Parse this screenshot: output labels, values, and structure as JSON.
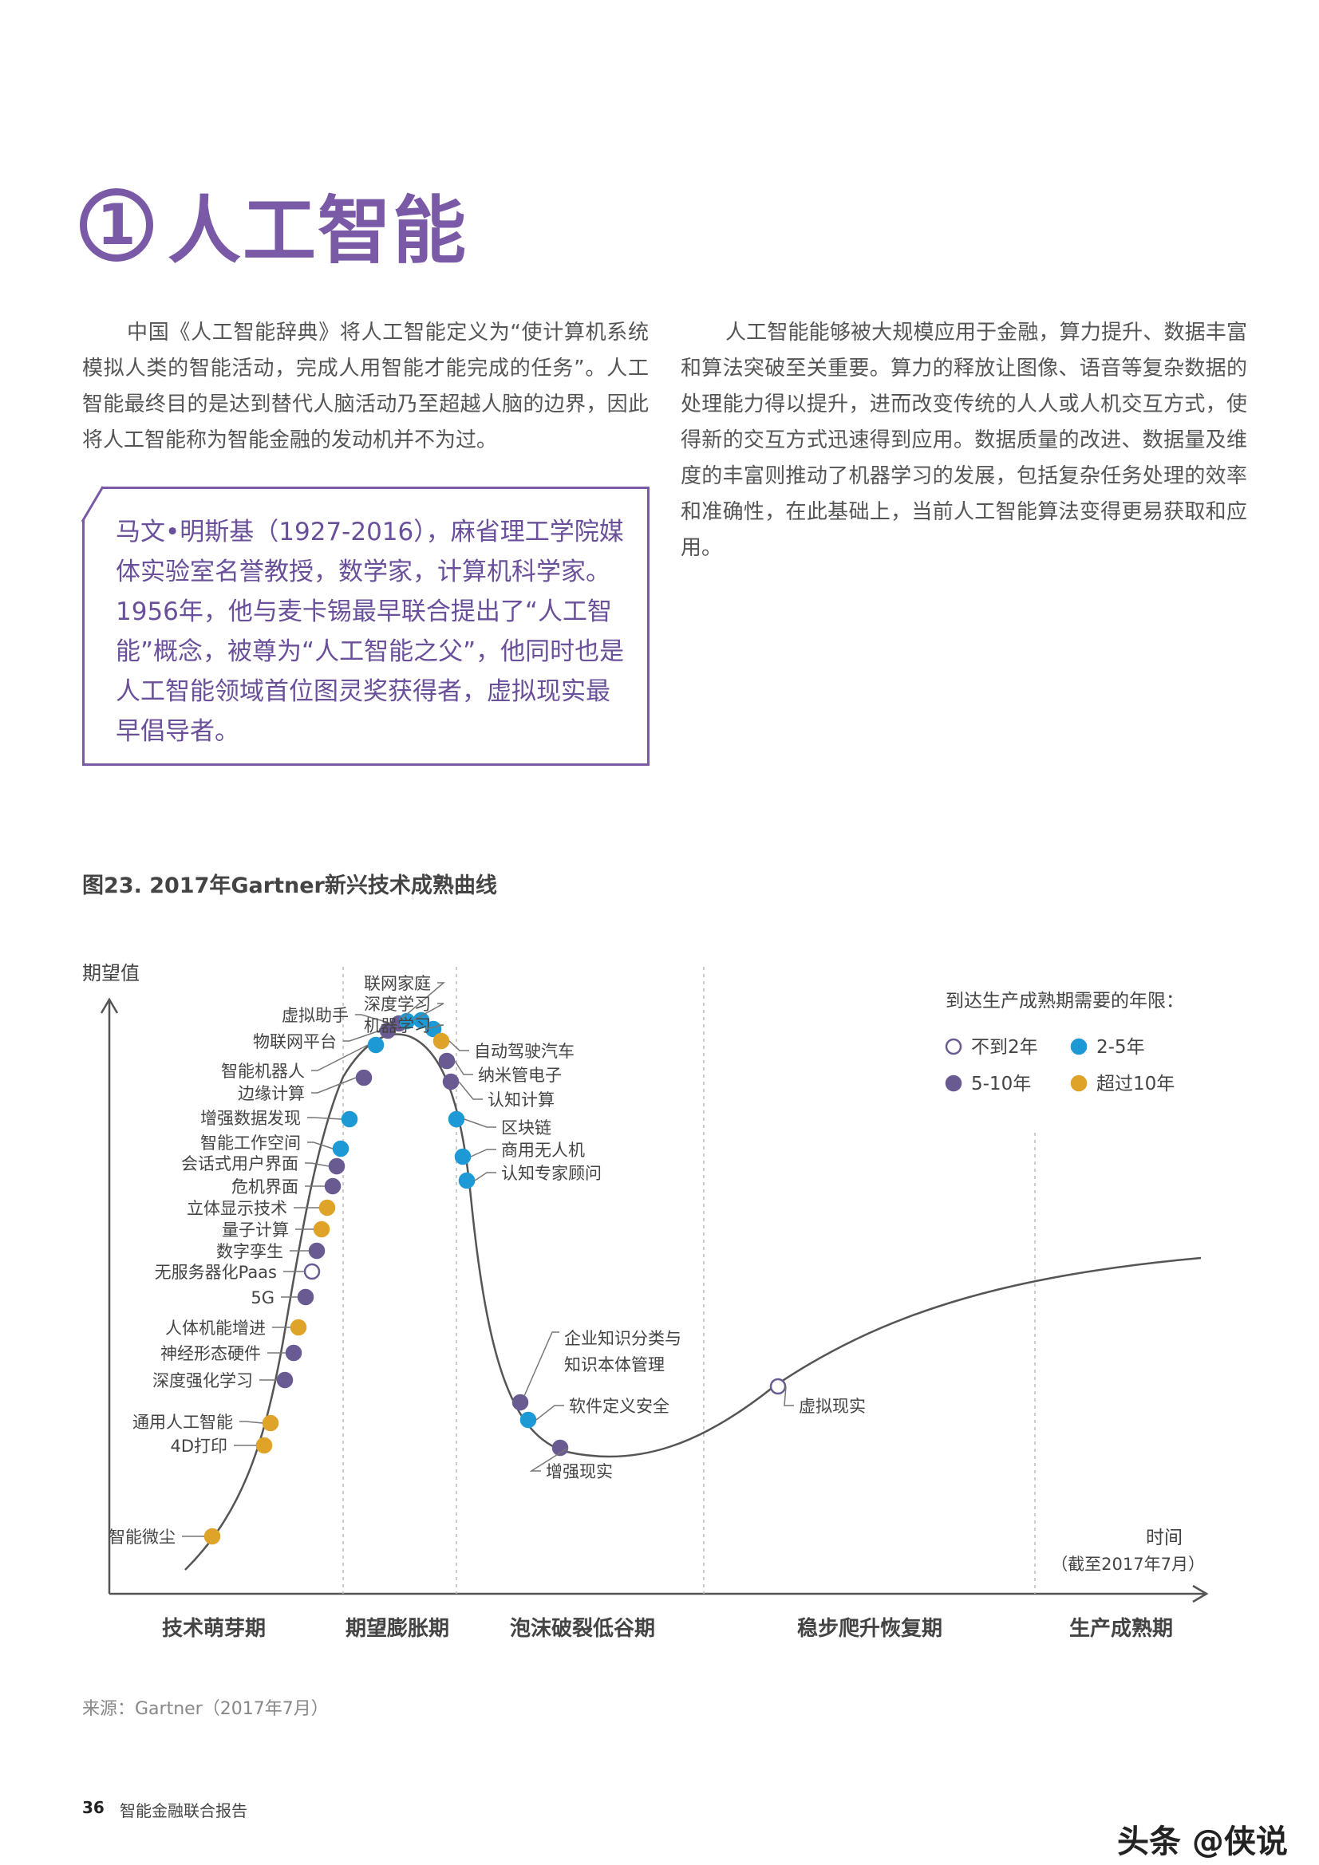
{
  "section": {
    "number": "1",
    "title": "人工智能"
  },
  "intro_left": "中国《人工智能辞典》将人工智能定义为“使计算机系统模拟人类的智能活动，完成人用智能才能完成的任务”。人工智能最终目的是达到替代人脑活动乃至超越人脑的边界，因此将人工智能称为智能金融的发动机并不为过。",
  "intro_right": "人工智能能够被大规模应用于金融，算力提升、数据丰富和算法突破至关重要。算力的释放让图像、语音等复杂数据的处理能力得以提升，进而改变传统的人人或人机交互方式，使得新的交互方式迅速得到应用。数据质量的改进、数据量及维度的丰富则推动了机器学习的发展，包括复杂任务处理的效率和准确性，在此基础上，当前人工智能算法变得更易获取和应用。",
  "bio": "马文•明斯基（1927-2016），麻省理工学院媒体实验室名誉教授，数学家，计算机科学家。1956年，他与麦卡锡最早联合提出了“人工智能”概念，被尊为“人工智能之父”，他同时也是人工智能领域首位图灵奖获得者，虚拟现实最早倡导者。",
  "figure_title": "图23. 2017年Gartner新兴技术成熟曲线",
  "source": "来源：Gartner（2017年7月）",
  "footer": {
    "page_number": "36",
    "report_name": "智能金融联合报告"
  },
  "watermark": "头条 @侠说",
  "chart_data": {
    "type": "scatter",
    "title": "2017年Gartner新兴技术成熟曲线",
    "ylabel": "期望值",
    "xlabel": "时间",
    "xlabel_note": "（截至2017年7月）",
    "phases": [
      "技术萌芽期",
      "期望膨胀期",
      "泡沫破裂低谷期",
      "稳步爬升恢复期",
      "生产成熟期"
    ],
    "legend": {
      "title": "到达生产成熟期需要的年限：",
      "position": "top-right",
      "entries": [
        {
          "key": "lt2",
          "label": "不到2年",
          "color": "#ffffff",
          "stroke": "#6a5a92"
        },
        {
          "key": "2to5",
          "label": "2-5年",
          "color": "#1d9ad6"
        },
        {
          "key": "5to10",
          "label": "5-10年",
          "color": "#6a5a92"
        },
        {
          "key": "gt10",
          "label": "超过10年",
          "color": "#e0a32a"
        }
      ]
    },
    "points": [
      {
        "label": "智能微尘",
        "phase": "技术萌芽期",
        "years": "gt10"
      },
      {
        "label": "4D打印",
        "phase": "技术萌芽期",
        "years": "gt10"
      },
      {
        "label": "通用人工智能",
        "phase": "技术萌芽期",
        "years": "gt10"
      },
      {
        "label": "深度强化学习",
        "phase": "技术萌芽期",
        "years": "5to10"
      },
      {
        "label": "神经形态硬件",
        "phase": "技术萌芽期",
        "years": "5to10"
      },
      {
        "label": "人体机能增进",
        "phase": "技术萌芽期",
        "years": "gt10"
      },
      {
        "label": "5G",
        "phase": "技术萌芽期",
        "years": "5to10"
      },
      {
        "label": "无服务器化Paas",
        "phase": "技术萌芽期",
        "years": "lt2"
      },
      {
        "label": "数字孪生",
        "phase": "技术萌芽期",
        "years": "5to10"
      },
      {
        "label": "量子计算",
        "phase": "技术萌芽期",
        "years": "gt10"
      },
      {
        "label": "立体显示技术",
        "phase": "技术萌芽期",
        "years": "gt10"
      },
      {
        "label": "危机界面",
        "phase": "技术萌芽期",
        "years": "5to10"
      },
      {
        "label": "会话式用户界面",
        "phase": "技术萌芽期",
        "years": "5to10"
      },
      {
        "label": "智能工作空间",
        "phase": "技术萌芽期",
        "years": "2to5"
      },
      {
        "label": "增强数据发现",
        "phase": "技术萌芽期",
        "years": "2to5"
      },
      {
        "label": "边缘计算",
        "phase": "技术萌芽期",
        "years": "5to10"
      },
      {
        "label": "智能机器人",
        "phase": "期望膨胀期",
        "years": "2to5"
      },
      {
        "label": "物联网平台",
        "phase": "期望膨胀期",
        "years": "5to10"
      },
      {
        "label": "虚拟助手",
        "phase": "期望膨胀期",
        "years": "5to10"
      },
      {
        "label": "联网家庭",
        "phase": "期望膨胀期",
        "years": "2to5"
      },
      {
        "label": "深度学习",
        "phase": "期望膨胀期",
        "years": "2to5"
      },
      {
        "label": "机器学习",
        "phase": "期望膨胀期",
        "years": "2to5"
      },
      {
        "label": "自动驾驶汽车",
        "phase": "期望膨胀期",
        "years": "gt10"
      },
      {
        "label": "纳米管电子",
        "phase": "期望膨胀期",
        "years": "5to10"
      },
      {
        "label": "认知计算",
        "phase": "期望膨胀期",
        "years": "5to10"
      },
      {
        "label": "区块链",
        "phase": "期望膨胀期",
        "years": "2to5"
      },
      {
        "label": "商用无人机",
        "phase": "泡沫破裂低谷期",
        "years": "2to5"
      },
      {
        "label": "认知专家顾问",
        "phase": "泡沫破裂低谷期",
        "years": "2to5"
      },
      {
        "label": "企业知识分类与知识本体管理",
        "phase": "泡沫破裂低谷期",
        "years": "5to10"
      },
      {
        "label": "软件定义安全",
        "phase": "泡沫破裂低谷期",
        "years": "2to5"
      },
      {
        "label": "增强现实",
        "phase": "泡沫破裂低谷期",
        "years": "5to10"
      },
      {
        "label": "虚拟现实",
        "phase": "稳步爬升恢复期",
        "years": "lt2"
      }
    ]
  }
}
